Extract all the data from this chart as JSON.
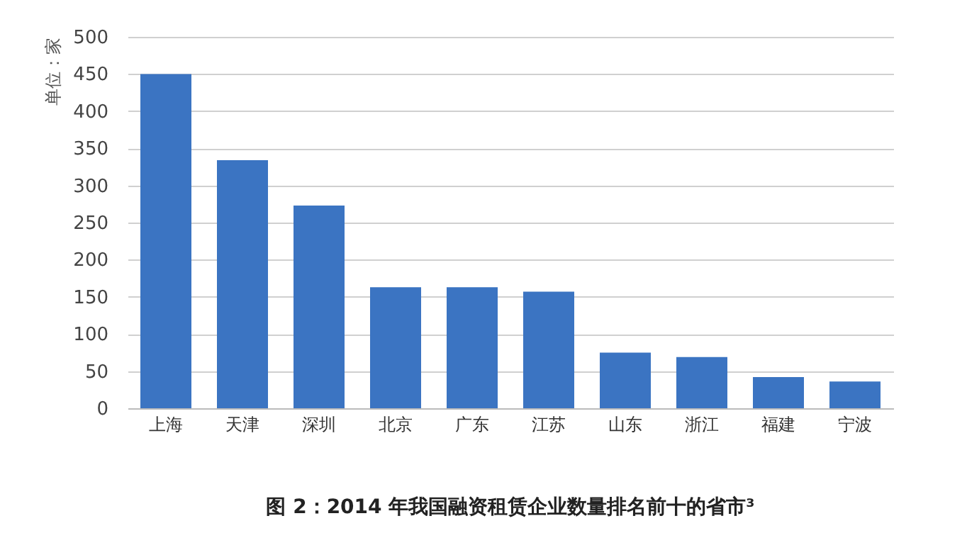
{
  "chart_data": {
    "type": "bar",
    "title": "图 2：2014 年我国融资租赁企业数量排名前十的省市³",
    "ylabel": "单位：家",
    "categories": [
      "上海",
      "天津",
      "深圳",
      "北京",
      "广东",
      "江苏",
      "山东",
      "浙江",
      "福建",
      "宁波"
    ],
    "values": [
      450,
      334,
      273,
      163,
      163,
      157,
      75,
      69,
      42,
      36
    ],
    "color": "#3b74c2",
    "ylim": [
      0,
      500
    ],
    "yticks": [
      0,
      50,
      100,
      150,
      200,
      250,
      300,
      350,
      400,
      450,
      500
    ],
    "grid": "y"
  }
}
